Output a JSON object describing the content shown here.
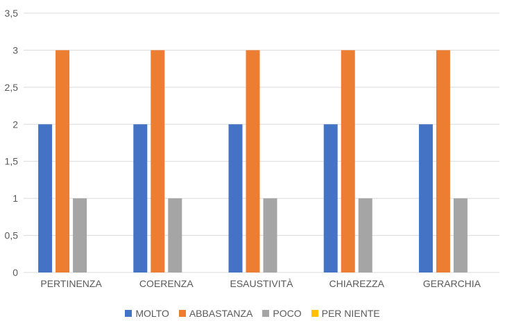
{
  "chart_data": {
    "type": "bar",
    "categories": [
      "PERTINENZA",
      "COERENZA",
      "ESAUSTIVITÀ",
      "CHIAREZZA",
      "GERARCHIA"
    ],
    "series": [
      {
        "name": "MOLTO",
        "color": "#4472C4",
        "values": [
          2,
          2,
          2,
          2,
          2
        ]
      },
      {
        "name": "ABBASTANZA",
        "color": "#ED7D31",
        "values": [
          3,
          3,
          3,
          3,
          3
        ]
      },
      {
        "name": "POCO",
        "color": "#A5A5A5",
        "values": [
          1,
          1,
          1,
          1,
          1
        ]
      },
      {
        "name": "PER NIENTE",
        "color": "#FFC000",
        "values": [
          0,
          0,
          0,
          0,
          0
        ]
      }
    ],
    "yticks": [
      "0",
      "0,5",
      "1",
      "1,5",
      "2",
      "2,5",
      "3",
      "3,5"
    ],
    "ylim": [
      0,
      3.5
    ],
    "title": "",
    "xlabel": "",
    "ylabel": "",
    "grid": true,
    "legend_position": "bottom"
  }
}
